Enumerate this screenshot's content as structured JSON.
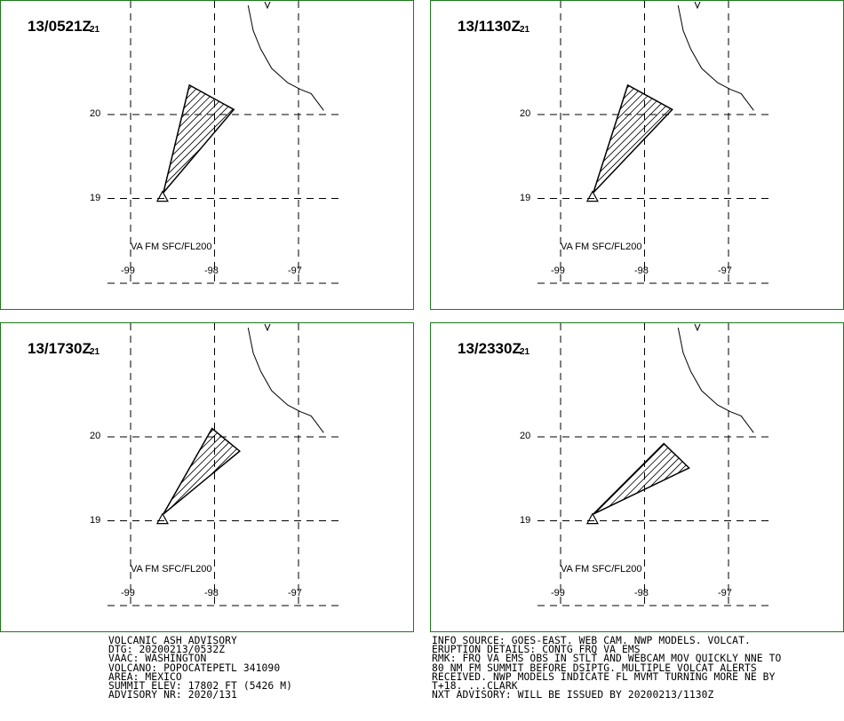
{
  "colors": {
    "border": "#1a7a1a",
    "line": "#000000",
    "background": "#ffffff"
  },
  "panels": [
    {
      "time": "13/0521",
      "suffix": "Z",
      "sub": "21",
      "fl": "VA FM SFC/FL200",
      "polygon": [
        [
          -98.61,
          19.07
        ],
        [
          -98.3,
          20.35
        ],
        [
          -97.77,
          20.06
        ]
      ]
    },
    {
      "time": "13/1130",
      "suffix": "Z",
      "sub": "21",
      "fl": "VA FM SFC/FL200",
      "polygon": [
        [
          -98.61,
          19.07
        ],
        [
          -98.2,
          20.35
        ],
        [
          -97.67,
          20.06
        ]
      ]
    },
    {
      "time": "13/1730",
      "suffix": "Z",
      "sub": "21",
      "fl": "VA FM SFC/FL200",
      "polygon": [
        [
          -98.61,
          19.08
        ],
        [
          -98.03,
          20.1
        ],
        [
          -97.7,
          19.83
        ]
      ]
    },
    {
      "time": "13/2330",
      "suffix": "Z",
      "sub": "21",
      "fl": "VA FM SFC/FL200",
      "polygon": [
        [
          -98.61,
          19.08
        ],
        [
          -97.77,
          19.92
        ],
        [
          -97.47,
          19.63
        ]
      ]
    }
  ],
  "axes": {
    "lat_labels": [
      "20",
      "19"
    ],
    "lon_labels": [
      "-99",
      "-98",
      "-97"
    ]
  },
  "advisory_left": [
    "VOLCANIC ASH ADVISORY",
    "DTG: 20200213/0532Z",
    "VAAC: WASHINGTON",
    "VOLCANO: POPOCATEPETL 341090",
    "AREA: MEXICO",
    "SUMMIT ELEV: 17802 FT (5426 M)",
    "ADVISORY NR: 2020/131"
  ],
  "advisory_right": [
    "INFO SOURCE: GOES-EAST. WEB CAM. NWP MODELS. VOLCAT.",
    "ERUPTION DETAILS: CONTG FRQ VA EMS",
    "RMK: FRQ VA EMS OBS IN STLT AND WEBCAM MOV QUICKLY NNE TO",
    "80 NM FM SUMMIT BEFORE DSIPTG. MULTIPLE VOLCAT ALERTS",
    "RECEIVED. NWP MODELS INDICATE FL MVMT TURNING MORE NE BY",
    "T+18. ...CLARK",
    "NXT ADVISORY: WILL BE ISSUED BY 20200213/1130Z"
  ]
}
